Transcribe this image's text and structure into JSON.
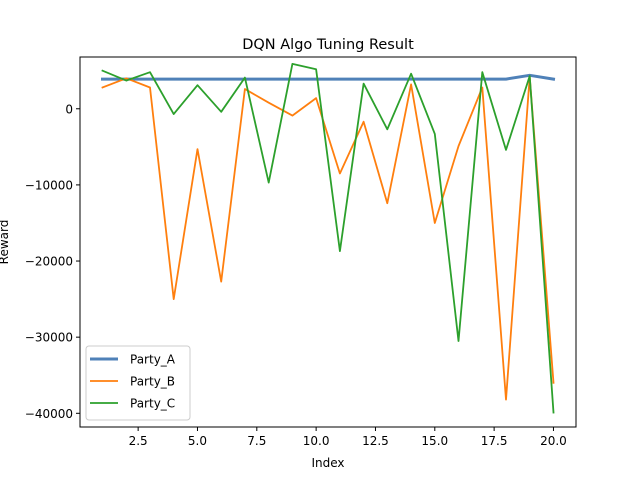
{
  "chart_data": {
    "type": "line",
    "title": "DQN Algo Tuning Result",
    "xlabel": "Index",
    "ylabel": "Reward",
    "x": [
      1,
      2,
      3,
      4,
      5,
      6,
      7,
      8,
      9,
      10,
      11,
      12,
      13,
      14,
      15,
      16,
      17,
      18,
      19,
      20
    ],
    "xlim": [
      0.05,
      20.95
    ],
    "ylim": [
      -41800,
      6800
    ],
    "xticks": [
      2.5,
      5.0,
      7.5,
      10.0,
      12.5,
      15.0,
      17.5,
      20.0
    ],
    "xtick_labels": [
      "2.5",
      "5.0",
      "7.5",
      "10.0",
      "12.5",
      "15.0",
      "17.5",
      "20.0"
    ],
    "yticks": [
      0,
      -10000,
      -20000,
      -30000,
      -40000
    ],
    "ytick_labels": [
      "0",
      "−10000",
      "−20000",
      "−30000",
      "−40000"
    ],
    "grid": false,
    "legend_position": "bottom-left",
    "series": [
      {
        "name": "Party_A",
        "color": "#4f81b8",
        "width": 3,
        "values": [
          3900,
          3900,
          3900,
          3900,
          3900,
          3900,
          3900,
          3900,
          3900,
          3900,
          3900,
          3900,
          3900,
          3900,
          3900,
          3900,
          3900,
          3900,
          4400,
          3900
        ]
      },
      {
        "name": "Party_B",
        "color": "#ff7f0e",
        "width": 1.8,
        "values": [
          2800,
          4000,
          2800,
          -25000,
          -5300,
          -22700,
          2600,
          800,
          -900,
          1400,
          -8500,
          -1700,
          -12400,
          3200,
          -15000,
          -4900,
          2800,
          -38200,
          4200,
          -36000
        ]
      },
      {
        "name": "Party_C",
        "color": "#2ca02c",
        "width": 1.8,
        "values": [
          5000,
          3700,
          4800,
          -700,
          3100,
          -400,
          4100,
          -9700,
          5900,
          5200,
          -18700,
          3300,
          -2700,
          4600,
          -3300,
          -30500,
          4800,
          -5400,
          4300,
          -39900
        ]
      }
    ]
  }
}
